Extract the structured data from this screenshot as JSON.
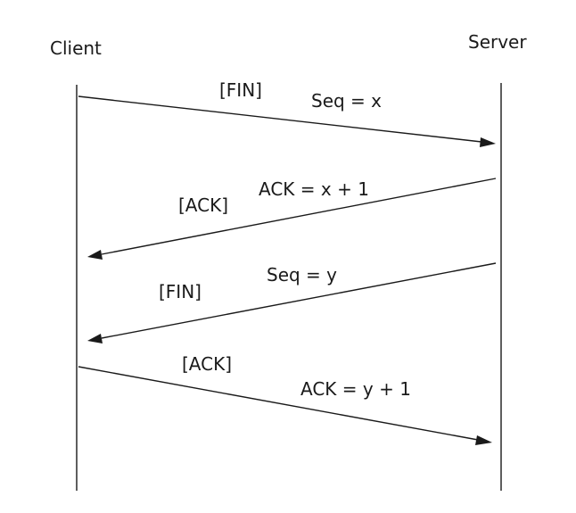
{
  "participants": {
    "client": "Client",
    "server": "Server"
  },
  "messages": [
    {
      "flag": "[FIN]",
      "label": "Seq = x",
      "direction": "client-to-server"
    },
    {
      "flag": "[ACK]",
      "label": "ACK = x + 1",
      "direction": "server-to-client"
    },
    {
      "flag": "[FIN]",
      "label": "Seq = y",
      "direction": "server-to-client"
    },
    {
      "flag": "[ACK]",
      "label": "ACK = y + 1",
      "direction": "client-to-server"
    }
  ],
  "colors": {
    "ink": "#1a1a1a",
    "background": "#ffffff"
  }
}
